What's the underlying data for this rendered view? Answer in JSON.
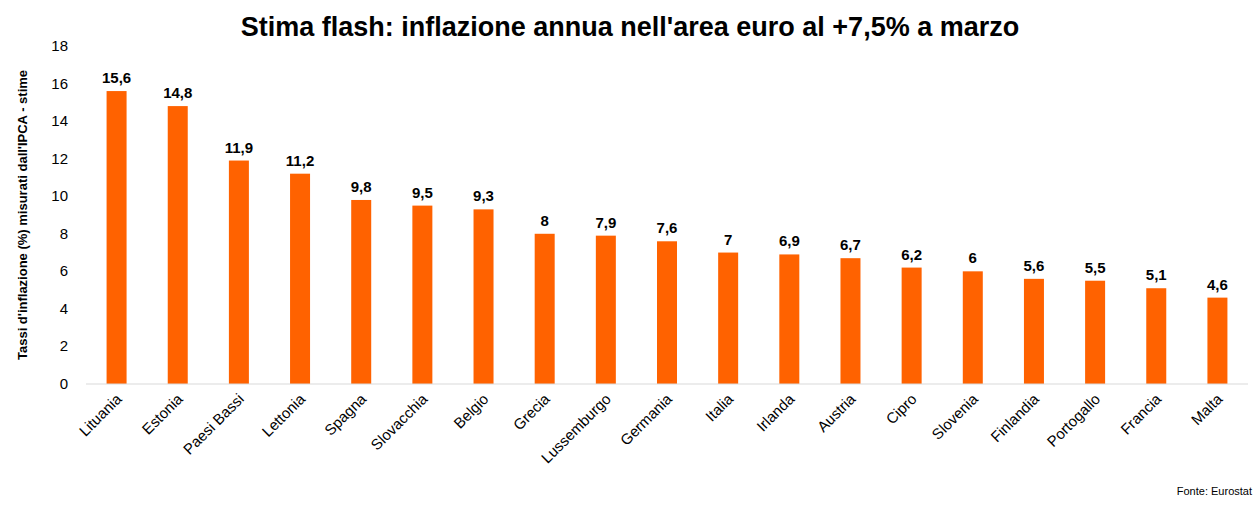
{
  "chart_data": {
    "type": "bar",
    "title": "Stima flash: inflazione annua nell'area euro al +7,5% a marzo",
    "y_label": "Tassi d'inflazione (%) misurati dall'IPCA - stime",
    "source": "Fonte: Eurostat",
    "categories": [
      "Lituania",
      "Estonia",
      "Paesi Bassi",
      "Lettonia",
      "Spagna",
      "Slovacchia",
      "Belgio",
      "Grecia",
      "Lussemburgo",
      "Germania",
      "Italia",
      "Irlanda",
      "Austria",
      "Cipro",
      "Slovenia",
      "Finlandia",
      "Portogallo",
      "Francia",
      "Malta"
    ],
    "values": [
      15.6,
      14.8,
      11.9,
      11.2,
      9.8,
      9.5,
      9.3,
      8,
      7.9,
      7.6,
      7,
      6.9,
      6.7,
      6.2,
      6,
      5.6,
      5.5,
      5.1,
      4.6
    ],
    "value_labels": [
      "15,6",
      "14,8",
      "11,9",
      "11,2",
      "9,8",
      "9,5",
      "9,3",
      "8",
      "7,9",
      "7,6",
      "7",
      "6,9",
      "6,7",
      "6,2",
      "6",
      "5,6",
      "5,5",
      "5,1",
      "4,6"
    ],
    "color": "#ff6200",
    "ylim": [
      0,
      18
    ],
    "yticks": [
      0,
      2,
      4,
      6,
      8,
      10,
      12,
      14,
      16,
      18
    ],
    "grid": false,
    "data_labels": true
  }
}
